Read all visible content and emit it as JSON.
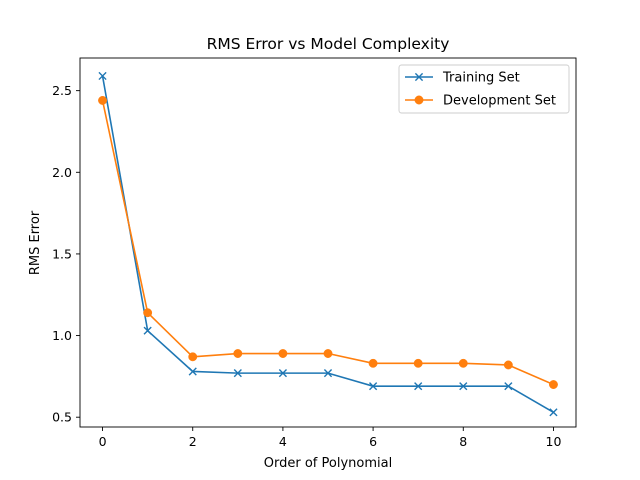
{
  "chart_data": {
    "type": "line",
    "title": "RMS Error vs Model Complexity",
    "xlabel": "Order of Polynomial",
    "ylabel": "RMS Error",
    "x": [
      0,
      1,
      2,
      3,
      4,
      5,
      6,
      7,
      8,
      9,
      10
    ],
    "xlim": [
      -0.5,
      10.5
    ],
    "ylim": [
      0.44,
      2.7
    ],
    "xticks": [
      0,
      2,
      4,
      6,
      8,
      10
    ],
    "yticks": [
      0.5,
      1.0,
      1.5,
      2.0,
      2.5
    ],
    "xtick_labels": [
      "0",
      "2",
      "4",
      "6",
      "8",
      "10"
    ],
    "ytick_labels": [
      "0.5",
      "1.0",
      "1.5",
      "2.0",
      "2.5"
    ],
    "grid": false,
    "legend_position": "top-right",
    "series": [
      {
        "name": "Training Set",
        "color": "#1f77b4",
        "marker": "x",
        "values": [
          2.59,
          1.03,
          0.78,
          0.77,
          0.77,
          0.77,
          0.69,
          0.69,
          0.69,
          0.69,
          0.53
        ]
      },
      {
        "name": "Development Set",
        "color": "#ff7f0e",
        "marker": "circle",
        "values": [
          2.44,
          1.14,
          0.87,
          0.89,
          0.89,
          0.89,
          0.83,
          0.83,
          0.83,
          0.82,
          0.7
        ]
      }
    ]
  }
}
